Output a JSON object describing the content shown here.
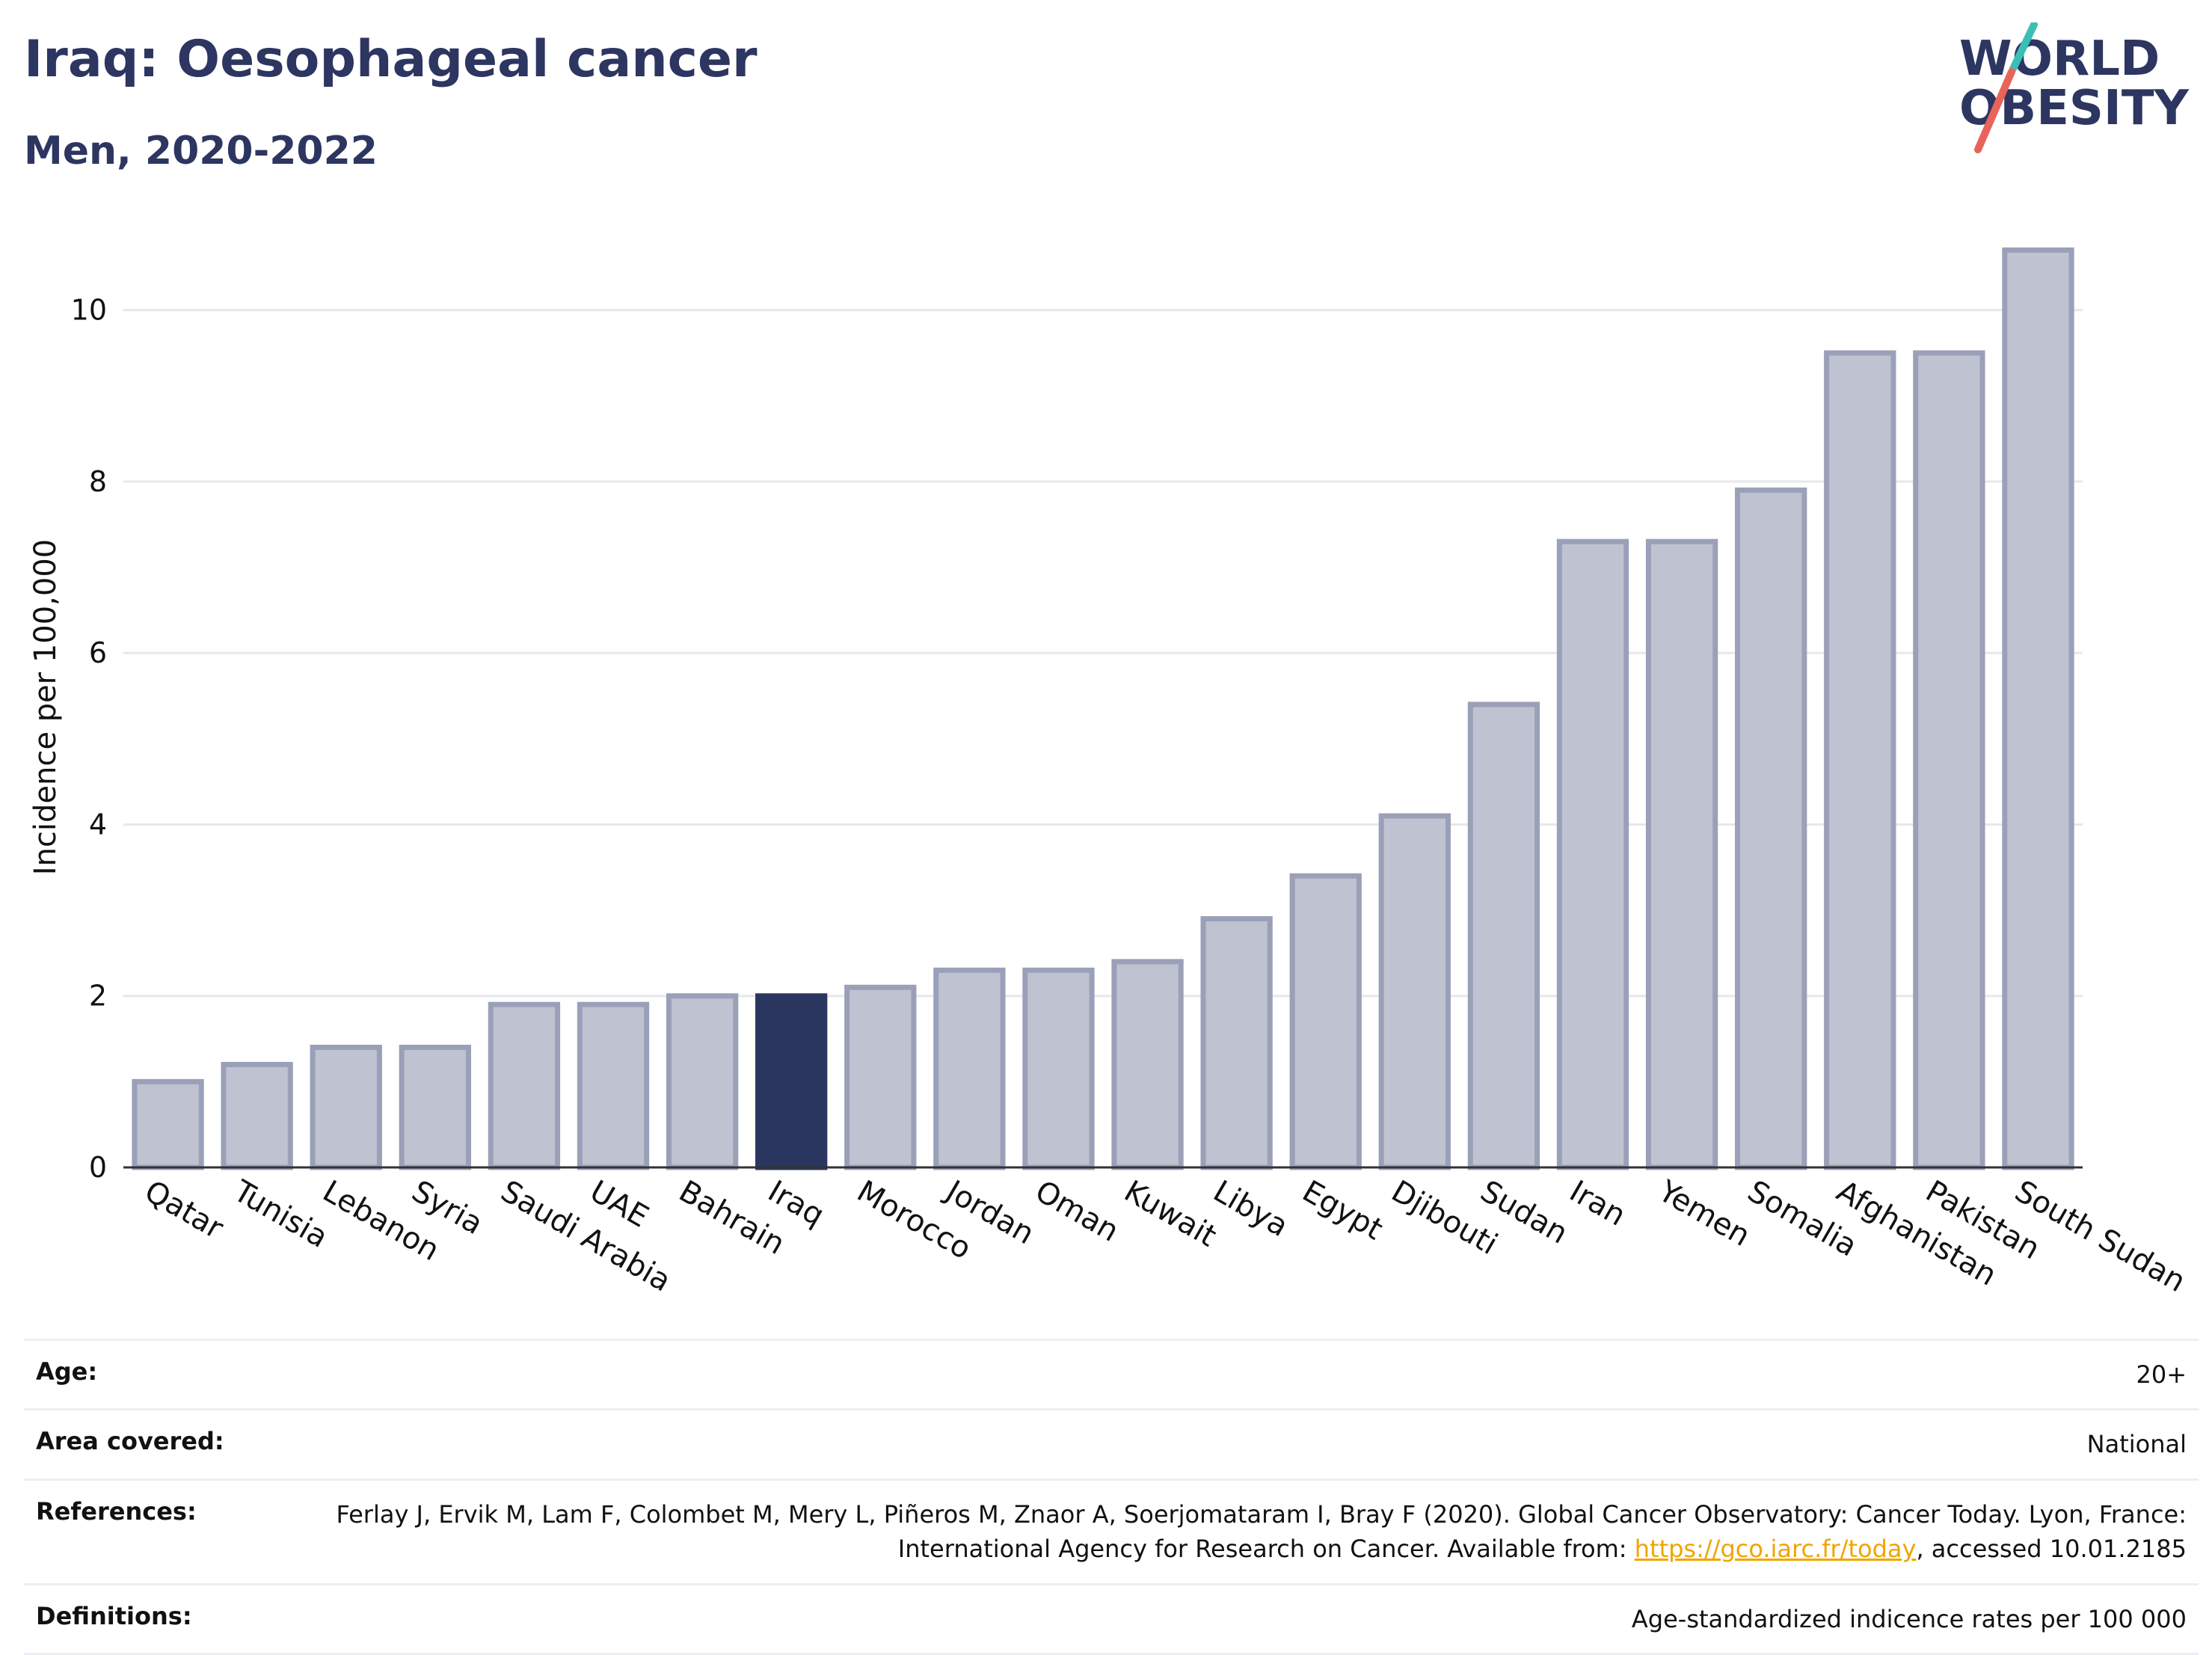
{
  "header": {
    "title": "Iraq: Oesophageal cancer",
    "subtitle": "Men, 2020-2022"
  },
  "logo": {
    "line1": "WORLD",
    "line2": "OBESITY",
    "accent_teal": "#3bbfb5",
    "accent_red": "#e8635a"
  },
  "colors": {
    "bar": "#bfc2d1",
    "bar_border": "#9aa0b8",
    "highlight": "#2b3660",
    "grid": "#e6e8ee",
    "text_dark": "#2d3561"
  },
  "chart_data": {
    "type": "bar",
    "ylabel": "Incidence per 100,000",
    "xlabel": "",
    "ylim": [
      0,
      11
    ],
    "yticks": [
      0,
      2,
      4,
      6,
      8,
      10
    ],
    "grid": true,
    "highlight": "Iraq",
    "categories": [
      "Qatar",
      "Tunisia",
      "Lebanon",
      "Syria",
      "Saudi Arabia",
      "UAE",
      "Bahrain",
      "Iraq",
      "Morocco",
      "Jordan",
      "Oman",
      "Kuwait",
      "Libya",
      "Egypt",
      "Djibouti",
      "Sudan",
      "Iran",
      "Yemen",
      "Somalia",
      "Afghanistan",
      "Pakistan",
      "South Sudan"
    ],
    "values": [
      1.0,
      1.2,
      1.4,
      1.4,
      1.9,
      1.9,
      2.0,
      2.0,
      2.1,
      2.3,
      2.3,
      2.4,
      2.9,
      3.4,
      4.1,
      5.4,
      7.3,
      7.3,
      7.9,
      9.5,
      9.5,
      10.7
    ]
  },
  "info": {
    "age": {
      "label": "Age:",
      "value": "20+"
    },
    "area": {
      "label": "Area covered:",
      "value": "National"
    },
    "references": {
      "label": "References:",
      "text_before": "Ferlay J, Ervik M, Lam F, Colombet M, Mery L, Piñeros M, Znaor A, Soerjomataram I, Bray F (2020). Global Cancer Observatory: Cancer Today. Lyon, France: International Agency for Research on Cancer. Available from: ",
      "link": "https://gco.iarc.fr/today",
      "text_after": ", accessed 10.01.2185"
    },
    "definitions": {
      "label": "Definitions:",
      "value": "Age-standardized indicence rates per 100 000"
    }
  }
}
